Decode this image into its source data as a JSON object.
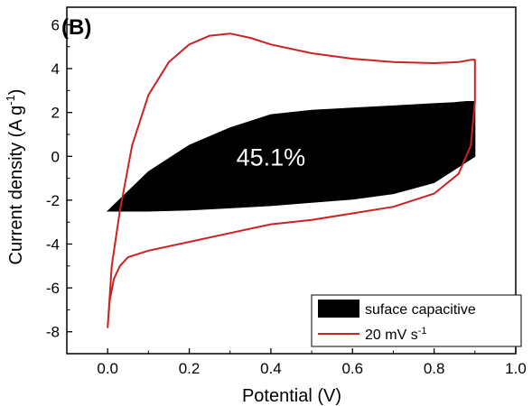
{
  "chart_data": {
    "type": "line",
    "panel_label": "(B)",
    "xlabel": "Potential (V)",
    "ylabel": "Current density (A g",
    "ylabel_sup": "-1",
    "ylabel_close": ")",
    "xlim": [
      -0.1,
      1.0
    ],
    "ylim": [
      -9,
      6.8
    ],
    "xticks": [
      {
        "v": 0.0,
        "label": "0.0"
      },
      {
        "v": 0.2,
        "label": "0.2"
      },
      {
        "v": 0.4,
        "label": "0.4"
      },
      {
        "v": 0.6,
        "label": "0.6"
      },
      {
        "v": 0.8,
        "label": "0.8"
      },
      {
        "v": 1.0,
        "label": "1.0"
      }
    ],
    "yticks": [
      {
        "v": -8,
        "label": "-8"
      },
      {
        "v": -6,
        "label": "-6"
      },
      {
        "v": -4,
        "label": "-4"
      },
      {
        "v": -2,
        "label": "-2"
      },
      {
        "v": 0,
        "label": "0"
      },
      {
        "v": 2,
        "label": "2"
      },
      {
        "v": 4,
        "label": "4"
      },
      {
        "v": 6,
        "label": "6"
      }
    ],
    "annotation": {
      "text": "45.1%",
      "x": 0.4,
      "y": 0.0
    },
    "legend": {
      "placement": "bottom-right",
      "entries": [
        {
          "label": "suface capacitive",
          "kind": "fill"
        },
        {
          "label": "20 mV s",
          "sup": "-1",
          "kind": "line"
        }
      ]
    },
    "colors": {
      "cv": "#cc2222",
      "surface": "#000000"
    },
    "series": [
      {
        "name": "20 mV s-1",
        "kind": "line",
        "x": [
          0.0,
          0.01,
          0.03,
          0.06,
          0.1,
          0.15,
          0.2,
          0.25,
          0.3,
          0.35,
          0.4,
          0.5,
          0.6,
          0.7,
          0.8,
          0.86,
          0.89,
          0.9,
          0.9,
          0.89,
          0.86,
          0.8,
          0.7,
          0.6,
          0.5,
          0.4,
          0.3,
          0.2,
          0.1,
          0.05,
          0.03,
          0.015,
          0.005,
          0.0
        ],
        "y": [
          -7.8,
          -5.0,
          -2.5,
          0.5,
          2.8,
          4.3,
          5.1,
          5.5,
          5.6,
          5.4,
          5.1,
          4.7,
          4.45,
          4.3,
          4.25,
          4.3,
          4.4,
          4.4,
          2.5,
          0.5,
          -0.8,
          -1.7,
          -2.3,
          -2.6,
          -2.9,
          -3.1,
          -3.5,
          -3.9,
          -4.3,
          -4.6,
          -5.0,
          -5.6,
          -6.6,
          -7.8
        ]
      },
      {
        "name": "suface capacitive",
        "kind": "fill",
        "x": [
          0.0,
          0.1,
          0.2,
          0.3,
          0.4,
          0.5,
          0.6,
          0.7,
          0.8,
          0.9,
          0.9,
          0.88,
          0.85,
          0.8,
          0.7,
          0.6,
          0.5,
          0.4,
          0.3,
          0.2,
          0.1,
          0.0
        ],
        "y": [
          -2.5,
          -2.5,
          -2.45,
          -2.35,
          -2.25,
          -2.1,
          -1.95,
          -1.7,
          -1.2,
          0.0,
          2.5,
          2.5,
          2.45,
          2.4,
          2.3,
          2.2,
          2.1,
          1.9,
          1.3,
          0.5,
          -0.7,
          -2.5
        ]
      }
    ]
  }
}
